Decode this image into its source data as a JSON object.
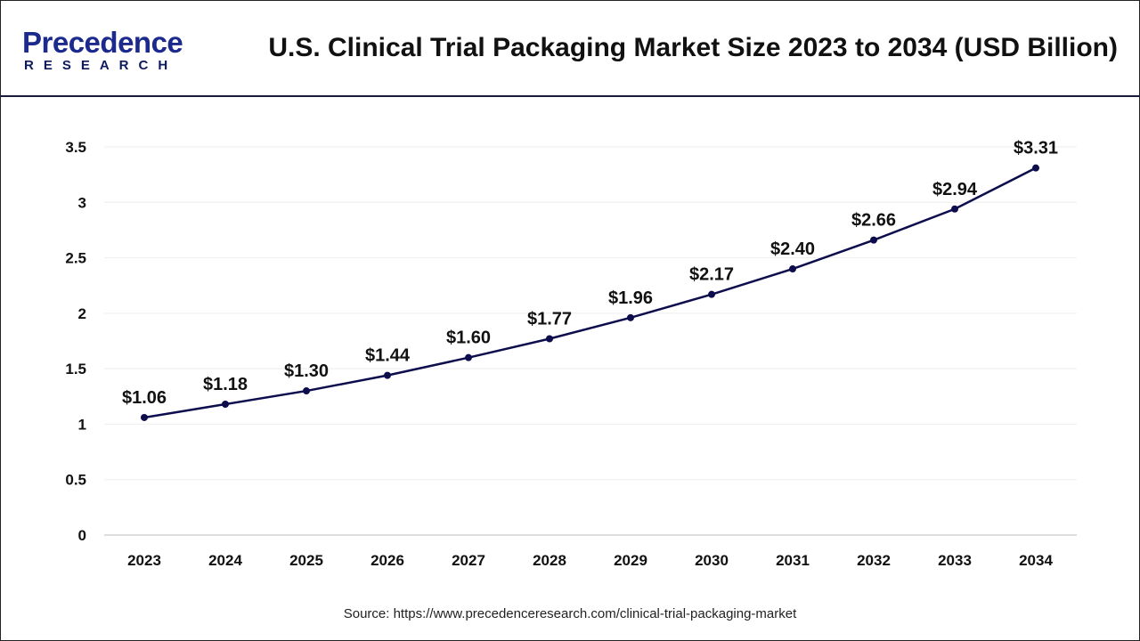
{
  "logo": {
    "main": "Precedence",
    "sub": "RESEARCH"
  },
  "title": "U.S. Clinical Trial Packaging Market Size 2023 to 2034 (USD Billion)",
  "source": "Source: https://www.precedenceresearch.com/clinical-trial-packaging-market",
  "chart_data": {
    "type": "line",
    "title": "U.S. Clinical Trial Packaging Market Size 2023 to 2034 (USD Billion)",
    "categories": [
      "2023",
      "2024",
      "2025",
      "2026",
      "2027",
      "2028",
      "2029",
      "2030",
      "2031",
      "2032",
      "2033",
      "2034"
    ],
    "values": [
      1.06,
      1.18,
      1.3,
      1.44,
      1.6,
      1.77,
      1.96,
      2.17,
      2.4,
      2.66,
      2.94,
      3.31
    ],
    "labels": [
      "$1.06",
      "$1.18",
      "$1.30",
      "$1.44",
      "$1.60",
      "$1.77",
      "$1.96",
      "$2.17",
      "$2.40",
      "$2.66",
      "$2.94",
      "$3.31"
    ],
    "yticks": [
      "0",
      "0.5",
      "1",
      "1.5",
      "2",
      "2.5",
      "3",
      "3.5"
    ],
    "ylim": [
      0,
      3.5
    ],
    "grid": true,
    "line_color": "#0d0d4d"
  }
}
